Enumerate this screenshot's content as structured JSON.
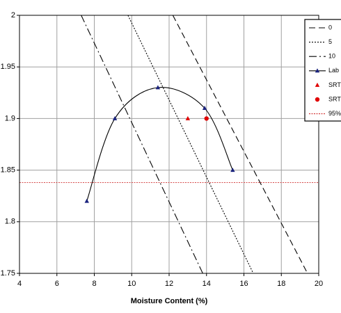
{
  "chart_data": {
    "type": "line",
    "x_label": "Moisture Content (%)",
    "xlim": [
      4,
      20
    ],
    "xticks": [
      4,
      6,
      8,
      10,
      12,
      14,
      16,
      18,
      20
    ],
    "ylim": [
      1.75,
      2
    ],
    "yticks": [
      1.75,
      1.8,
      1.85,
      1.9,
      1.95,
      2
    ],
    "grid": true,
    "legend": "upper right",
    "series": [
      {
        "name": "0",
        "color": "#000000",
        "dash": "dashed",
        "x": [
          12.2,
          19.4
        ],
        "values": [
          2,
          1.75
        ]
      },
      {
        "name": "5",
        "color": "#000000",
        "dash": "dotted",
        "x": [
          9.8,
          16.5
        ],
        "values": [
          2,
          1.75
        ]
      },
      {
        "name": "10",
        "color": "#000000",
        "dash": "dashdot",
        "x": [
          7.3,
          13.8
        ],
        "values": [
          2,
          1.75
        ]
      },
      {
        "name": "Lab",
        "color": "#1a237e",
        "dash": "solid",
        "marker": "triangle",
        "smooth": true,
        "x": [
          7.6,
          9.1,
          11.4,
          13.9,
          15.4
        ],
        "values": [
          1.82,
          1.9,
          1.93,
          1.91,
          1.85
        ]
      },
      {
        "name": "SRT",
        "color": "#e00000",
        "dash": "none",
        "marker": "triangle",
        "x": [
          13
        ],
        "values": [
          1.9
        ]
      },
      {
        "name": "SRT",
        "color": "#e00000",
        "dash": "none",
        "marker": "circle",
        "x": [
          14
        ],
        "values": [
          1.9
        ]
      },
      {
        "name": "95%",
        "color": "#d03030",
        "dash": "fine",
        "x": [
          4,
          20
        ],
        "values": [
          1.838,
          1.838
        ]
      }
    ]
  }
}
